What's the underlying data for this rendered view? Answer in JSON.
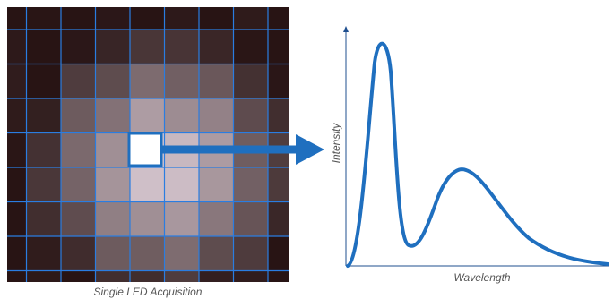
{
  "left_panel": {
    "caption": "Single LED Acquisition"
  },
  "right_panel": {
    "y_axis_label": "Intensity",
    "x_axis_label": "Wavelength"
  }
}
